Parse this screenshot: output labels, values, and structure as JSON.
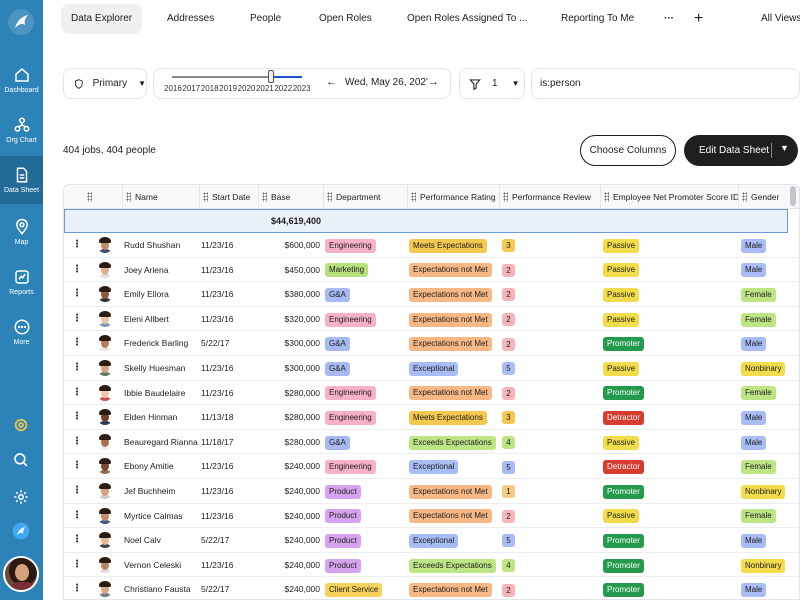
{
  "colors": {
    "sidebar": "#2d82b7",
    "accent": "#1a54d6",
    "dark_button": "#1f1f1f",
    "dept": {
      "Engineering": "#f7b1c8",
      "Marketing": "#b8e07c",
      "G&A": "#a6b9f0",
      "Product": "#d8a3ee",
      "Client Service": "#f7d25a"
    },
    "rating": {
      "Meets Expectations": "#f5c94f",
      "Expectations not Met": "#f7b886",
      "Exceptional": "#a8bcf5",
      "Exceeds Expectations": "#bde583"
    },
    "review": {
      "1": "#f7c984",
      "2": "#f6b5b9",
      "3": "#f5c94f",
      "4": "#bde583",
      "5": "#a8bcf5"
    },
    "enps": {
      "Passive": "#f2dc4b",
      "Promoter": "#239a4d",
      "Detractor": "#d63c2f"
    },
    "gender": {
      "Male": "#a8bcf5",
      "Female": "#bde583",
      "Nonbinary": "#f2dc4b"
    }
  },
  "sidebar": {
    "items": [
      {
        "label": "Dashboard",
        "icon": "home-icon"
      },
      {
        "label": "Org Chart",
        "icon": "org-chart-icon"
      },
      {
        "label": "Data Sheet",
        "icon": "document-icon"
      },
      {
        "label": "Map",
        "icon": "map-pin-icon"
      },
      {
        "label": "Reports",
        "icon": "reports-icon"
      },
      {
        "label": "More",
        "icon": "more-icon"
      }
    ]
  },
  "tabs": {
    "items": [
      "Data Explorer",
      "Addresses",
      "People",
      "Open Roles",
      "Open Roles Assigned To ...",
      "Reporting To Me"
    ],
    "more": "···",
    "add": "+",
    "all_views": "All Views"
  },
  "toolbar": {
    "scope": "Primary",
    "years": [
      "2016",
      "2017",
      "2018",
      "2019",
      "2020",
      "2021",
      "2022",
      "2023"
    ],
    "date": "Wed, May 26, 202'",
    "prev": "←",
    "next": "→",
    "filter_count": "1",
    "search_value": "is:person"
  },
  "summary": "404 jobs, 404 people",
  "buttons": {
    "choose_columns": "Choose Columns",
    "edit_sheet": "Edit Data Sheet"
  },
  "table": {
    "columns": [
      "Name",
      "Start Date",
      "Base",
      "Department",
      "Performance Rating",
      "Performance Review",
      "Employee Net Promoter Score ID",
      "Gender"
    ],
    "total_base": "$44,619,400",
    "rows": [
      {
        "name": "Rudd Shushan",
        "start": "11/23/16",
        "base": "$600,000",
        "dept": "Engineering",
        "rating": "Meets Expectations",
        "review": "3",
        "enps": "Passive",
        "gender": "Male"
      },
      {
        "name": "Joey Arlena",
        "start": "11/23/16",
        "base": "$450,000",
        "dept": "Marketing",
        "rating": "Expectations not Met",
        "review": "2",
        "enps": "Passive",
        "gender": "Male"
      },
      {
        "name": "Emily Ellora",
        "start": "11/23/16",
        "base": "$380,000",
        "dept": "G&A",
        "rating": "Expectations not Met",
        "review": "2",
        "enps": "Passive",
        "gender": "Female"
      },
      {
        "name": "Eleni Allbert",
        "start": "11/23/16",
        "base": "$320,000",
        "dept": "Engineering",
        "rating": "Expectations not Met",
        "review": "2",
        "enps": "Passive",
        "gender": "Female"
      },
      {
        "name": "Frederick Barling",
        "start": "5/22/17",
        "base": "$300,000",
        "dept": "G&A",
        "rating": "Expectations not Met",
        "review": "2",
        "enps": "Promoter",
        "gender": "Male"
      },
      {
        "name": "Skelly Huesman",
        "start": "11/23/16",
        "base": "$300,000",
        "dept": "G&A",
        "rating": "Exceptional",
        "review": "5",
        "enps": "Passive",
        "gender": "Nonbinary"
      },
      {
        "name": "Ibbie Baudelaire",
        "start": "11/23/16",
        "base": "$280,000",
        "dept": "Engineering",
        "rating": "Expectations not Met",
        "review": "2",
        "enps": "Promoter",
        "gender": "Female"
      },
      {
        "name": "Elden Hinman",
        "start": "11/13/18",
        "base": "$280,000",
        "dept": "Engineering",
        "rating": "Meets Expectations",
        "review": "3",
        "enps": "Detractor",
        "gender": "Male"
      },
      {
        "name": "Beauregard Rianna",
        "start": "11/18/17",
        "base": "$280,000",
        "dept": "G&A",
        "rating": "Exceeds Expectations",
        "review": "4",
        "enps": "Passive",
        "gender": "Male"
      },
      {
        "name": "Ebony Amitie",
        "start": "11/23/16",
        "base": "$240,000",
        "dept": "Engineering",
        "rating": "Exceptional",
        "review": "5",
        "enps": "Detractor",
        "gender": "Female"
      },
      {
        "name": "Jef Buchheim",
        "start": "11/23/16",
        "base": "$240,000",
        "dept": "Product",
        "rating": "Expectations not Met",
        "review": "1",
        "enps": "Promoter",
        "gender": "Nonbinary"
      },
      {
        "name": "Myrtice Calmas",
        "start": "11/23/16",
        "base": "$240,000",
        "dept": "Product",
        "rating": "Expectations not Met",
        "review": "2",
        "enps": "Passive",
        "gender": "Female"
      },
      {
        "name": "Noel Calv",
        "start": "5/22/17",
        "base": "$240,000",
        "dept": "Product",
        "rating": "Exceptional",
        "review": "5",
        "enps": "Promoter",
        "gender": "Male"
      },
      {
        "name": "Vernon Celeski",
        "start": "11/23/16",
        "base": "$240,000",
        "dept": "Product",
        "rating": "Exceeds Expectations",
        "review": "4",
        "enps": "Promoter",
        "gender": "Nonbinary"
      },
      {
        "name": "Christiano Fausta",
        "start": "5/22/17",
        "base": "$240,000",
        "dept": "Client Service",
        "rating": "Expectations not Met",
        "review": "2",
        "enps": "Promoter",
        "gender": "Male"
      }
    ]
  }
}
